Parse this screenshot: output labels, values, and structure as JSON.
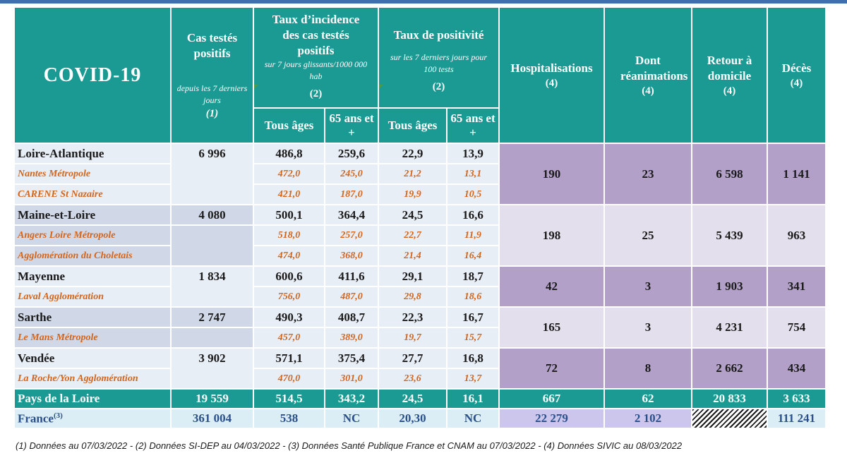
{
  "title": "COVID-19",
  "headers": {
    "cas": {
      "title": "Cas testés positifs",
      "sub": "depuis les 7 derniers jours",
      "note": "(1)"
    },
    "incidence": {
      "title": "Taux d’incidence des cas testés positifs",
      "sub": "sur 7 jours glissants/1000 000 hab",
      "note": "(2)"
    },
    "positivite": {
      "title": "Taux de positivité",
      "sub": "sur les 7 derniers jours pour 100 tests",
      "note": "(2)"
    },
    "tous_ages": "Tous âges",
    "plus65": "65 ans et +",
    "hosp": {
      "title": "Hospitalisations",
      "note": "(4)"
    },
    "rea": {
      "title": "Dont réanimations",
      "note": "(4)"
    },
    "retour": {
      "title": "Retour à domicile",
      "note": "(4)"
    },
    "deces": {
      "title": "Décès",
      "note": "(4)"
    }
  },
  "departments": [
    {
      "name": "Loire-Atlantique",
      "cas": "6 996",
      "inc_all": "486,8",
      "inc_65": "259,6",
      "pos_all": "22,9",
      "pos_65": "13,9",
      "hosp": "190",
      "rea": "23",
      "retour": "6 598",
      "deces": "1 141",
      "aggs": [
        {
          "name": "Nantes Métropole",
          "inc_all": "472,0",
          "inc_65": "245,0",
          "pos_all": "21,2",
          "pos_65": "13,1"
        },
        {
          "name": "CARENE St Nazaire",
          "inc_all": "421,0",
          "inc_65": "187,0",
          "pos_all": "19,9",
          "pos_65": "10,5"
        }
      ]
    },
    {
      "name": "Maine-et-Loire",
      "cas": "4 080",
      "inc_all": "500,1",
      "inc_65": "364,4",
      "pos_all": "24,5",
      "pos_65": "16,6",
      "hosp": "198",
      "rea": "25",
      "retour": "5 439",
      "deces": "963",
      "aggs": [
        {
          "name": "Angers Loire Métropole",
          "inc_all": "518,0",
          "inc_65": "257,0",
          "pos_all": "22,7",
          "pos_65": "11,9"
        },
        {
          "name": "Agglomération du Choletais",
          "inc_all": "474,0",
          "inc_65": "368,0",
          "pos_all": "21,4",
          "pos_65": "16,4"
        }
      ]
    },
    {
      "name": "Mayenne",
      "cas": "1 834",
      "inc_all": "600,6",
      "inc_65": "411,6",
      "pos_all": "29,1",
      "pos_65": "18,7",
      "hosp": "42",
      "rea": "3",
      "retour": "1 903",
      "deces": "341",
      "aggs": [
        {
          "name": "Laval Agglomération",
          "inc_all": "756,0",
          "inc_65": "487,0",
          "pos_all": "29,8",
          "pos_65": "18,6"
        }
      ]
    },
    {
      "name": "Sarthe",
      "cas": "2 747",
      "inc_all": "490,3",
      "inc_65": "408,7",
      "pos_all": "22,3",
      "pos_65": "16,7",
      "hosp": "165",
      "rea": "3",
      "retour": "4 231",
      "deces": "754",
      "aggs": [
        {
          "name": "Le Mans Métropole",
          "inc_all": "457,0",
          "inc_65": "389,0",
          "pos_all": "19,7",
          "pos_65": "15,7"
        }
      ]
    },
    {
      "name": "Vendée",
      "cas": "3 902",
      "inc_all": "571,1",
      "inc_65": "375,4",
      "pos_all": "27,7",
      "pos_65": "16,8",
      "hosp": "72",
      "rea": "8",
      "retour": "2 662",
      "deces": "434",
      "aggs": [
        {
          "name": "La Roche/Yon Agglomération",
          "inc_all": "470,0",
          "inc_65": "301,0",
          "pos_all": "23,6",
          "pos_65": "13,7"
        }
      ]
    }
  ],
  "region": {
    "name": "Pays de la Loire",
    "cas": "19 559",
    "inc_all": "514,5",
    "inc_65": "343,2",
    "pos_all": "24,5",
    "pos_65": "16,1",
    "hosp": "667",
    "rea": "62",
    "retour": "20 833",
    "deces": "3 633"
  },
  "france": {
    "name": "France",
    "sup": "(3)",
    "cas": "361 004",
    "inc_all": "538",
    "inc_65": "NC",
    "pos_all": "20,30",
    "pos_65": "NC",
    "hosp": "22 279",
    "rea": "2 102",
    "retour": "",
    "deces": "111 241"
  },
  "footnote": "(1) Données au 07/03/2022 - (2) Données SI-DEP  au 04/03/2022 - (3) Données Santé Publique France et CNAM au 07/03/2022 - (4) Données SIVIC au 08/03/2022",
  "colors": {
    "teal": "#1a9a92",
    "purple": "#b2a0c8",
    "lilac": "#e4dfec",
    "agg_orange": "#d4651a",
    "france_blue": "#2a4f8a"
  }
}
